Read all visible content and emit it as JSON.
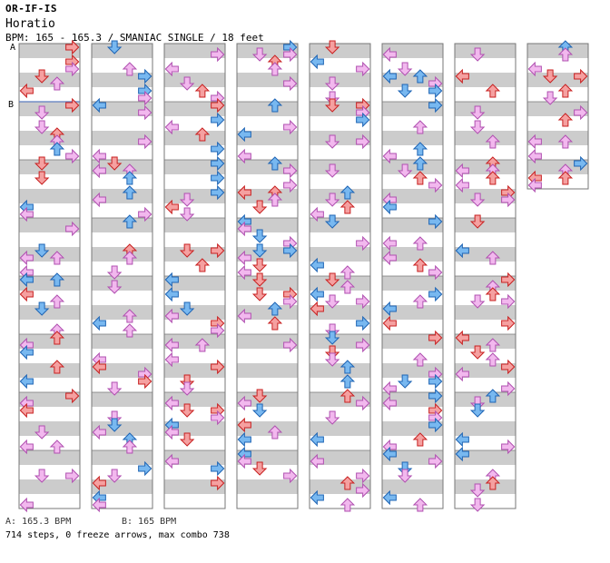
{
  "header": {
    "title": "OR-IF-IS",
    "artist": "Horatio",
    "info": "BPM: 165 - 165.3 / SMANIAC SINGLE / 18 feet"
  },
  "markers": {
    "a": "A",
    "b": "B"
  },
  "legend": {
    "a": "A: 165.3 BPM",
    "b": "B: 165 BPM"
  },
  "stats": "714 steps, 0 freeze arrows, max combo 738",
  "colors": {
    "stripe_gray": "#cccccc",
    "stripe_white": "#ffffff",
    "border": "#777777",
    "bpm_line": "#5b7dc0",
    "arrow_red_fill": "#f5a0a0",
    "arrow_red_stroke": "#c82020",
    "arrow_blue_fill": "#78b8f0",
    "arrow_blue_stroke": "#1e64b4",
    "arrow_pink_fill": "#f2b8ee",
    "arrow_pink_stroke": "#b050b0"
  },
  "chart_data": {
    "type": "step-chart",
    "columns_count": 8,
    "measures_per_column": 8,
    "lanes": [
      "left",
      "down",
      "up",
      "right"
    ],
    "column_measures": [
      8,
      8,
      8,
      8,
      8,
      8,
      8,
      2.5
    ]
  }
}
